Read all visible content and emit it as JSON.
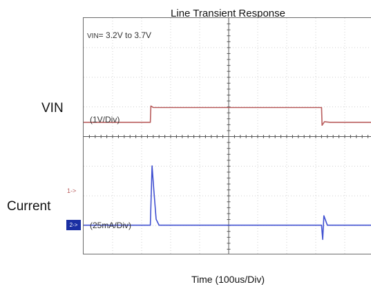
{
  "chart_data": {
    "type": "line",
    "title": "Line Transient Response",
    "xlabel": "Time (100us/Div)",
    "x_divisions": 10,
    "y_divisions": 8,
    "annotations": {
      "vin_range_prefix": "VIN",
      "vin_range_value": "= 3.2V to 3.7V",
      "vin_scale": "(1V/Div)",
      "current_scale": "(25mA/Div)"
    },
    "channel_markers": {
      "ch1": "1->",
      "ch2": "2->"
    },
    "series": [
      {
        "name": "VIN",
        "unit": "V",
        "color": "#b85b5b",
        "x": [
          0,
          2.3,
          2.32,
          2.4,
          2.6,
          8.2,
          8.22,
          8.3,
          8.5,
          10
        ],
        "y": [
          3.2,
          3.2,
          3.75,
          3.7,
          3.7,
          3.7,
          3.1,
          3.22,
          3.2,
          3.2
        ]
      },
      {
        "name": "Current",
        "unit": "mA",
        "color": "#3f4fd0",
        "x": [
          0,
          2.3,
          2.36,
          2.42,
          2.5,
          2.6,
          8.2,
          8.24,
          8.28,
          8.4,
          10
        ],
        "y": [
          0,
          0,
          50,
          30,
          5,
          0,
          0,
          -12,
          8,
          0,
          0
        ]
      }
    ]
  },
  "side_labels": {
    "vin": "VIN",
    "current": "Current"
  },
  "colors": {
    "grid": "#cfcfcf",
    "frame": "#6a6a6a",
    "vin": "#b85b5b",
    "current": "#3f4fd0"
  }
}
